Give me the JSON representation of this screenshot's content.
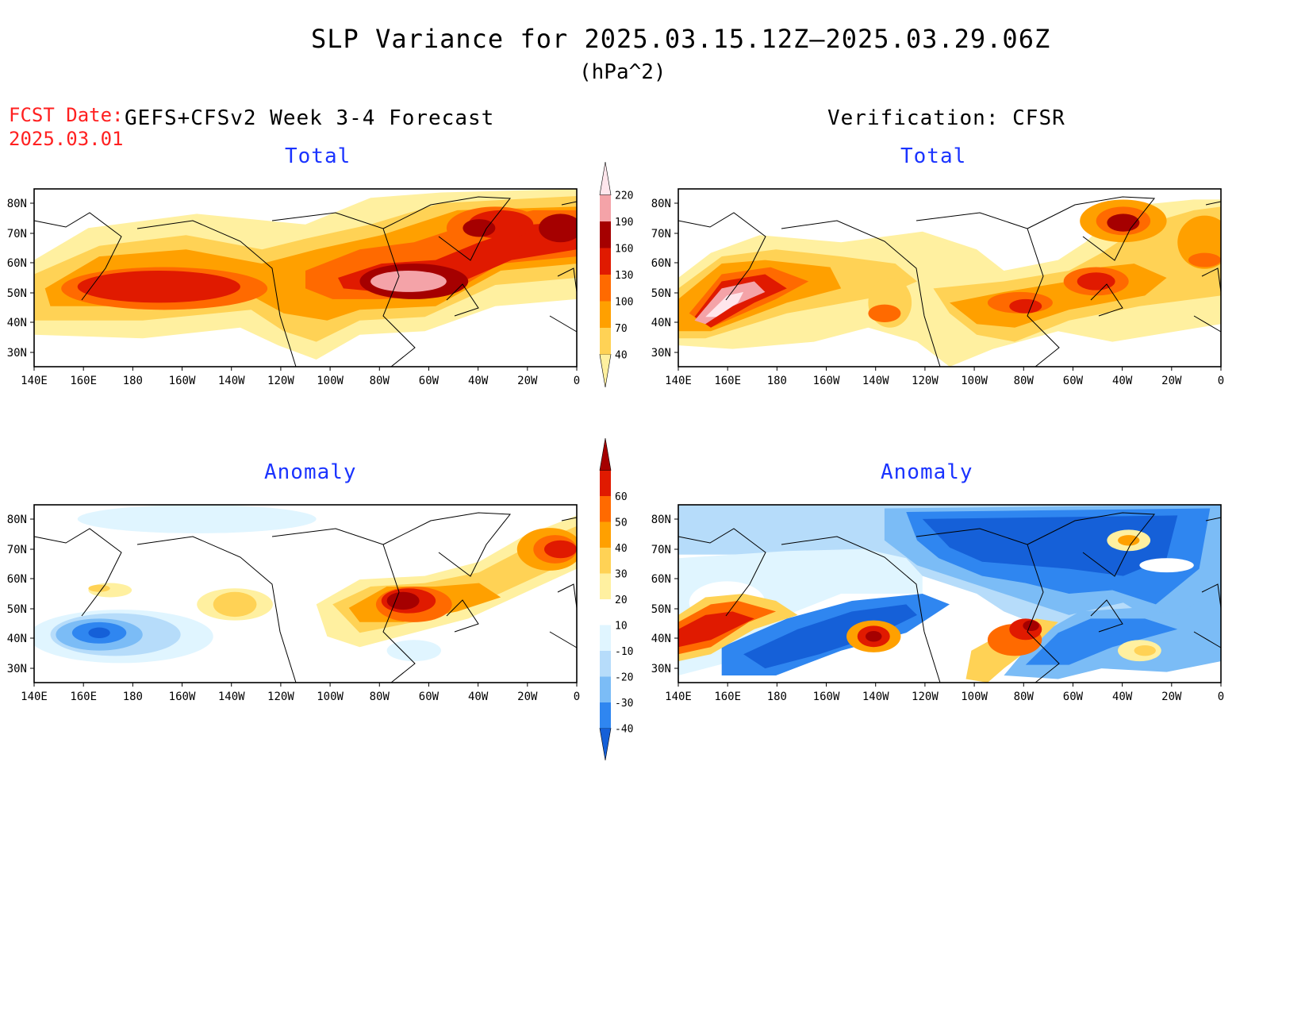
{
  "header": {
    "title": "SLP Variance for 2025.03.15.12Z—2025.03.29.06Z",
    "units": "(hPa^2)",
    "fcst_label": "FCST Date:",
    "fcst_date": "2025.03.01",
    "left_heading": "GEFS+CFSv2 Week 3-4 Forecast",
    "right_heading": "Verification: CFSR"
  },
  "panels": {
    "fcst_total": {
      "label": "Total"
    },
    "verif_total": {
      "label": "Total"
    },
    "fcst_anom": {
      "label": "Anomaly"
    },
    "verif_anom": {
      "label": "Anomaly"
    }
  },
  "axes": {
    "lat_labels": [
      "80N",
      "70N",
      "60N",
      "50N",
      "40N",
      "30N"
    ],
    "lon_labels": [
      "140E",
      "160E",
      "180",
      "160W",
      "140W",
      "120W",
      "100W",
      "80W",
      "60W",
      "40W",
      "20W",
      "0"
    ]
  },
  "colorbars": {
    "total": {
      "levels": [
        "40",
        "70",
        "100",
        "130",
        "160",
        "190",
        "220"
      ],
      "colors": [
        "#fff0a0",
        "#ffd255",
        "#ffa000",
        "#ff6a00",
        "#e01a00",
        "#a50000",
        "#f4a3a8",
        "#ffe6ec"
      ]
    },
    "anomaly": {
      "levels": [
        "-40",
        "-30",
        "-20",
        "-10",
        "10",
        "20",
        "30",
        "40",
        "50",
        "60"
      ],
      "colors": [
        "#1560d8",
        "#2f86f0",
        "#7bbcf6",
        "#b6dcfa",
        "#e0f5ff",
        "#ffffff",
        "#fff0a0",
        "#ffd255",
        "#ffa000",
        "#ff6a00",
        "#e01a00",
        "#a50000"
      ]
    }
  },
  "chart_data": [
    {
      "type": "heatmap",
      "panel": "GEFS+CFSv2 Week 3-4 Forecast",
      "title": "Total",
      "units": "hPa^2",
      "xlim": [
        "140E",
        "0"
      ],
      "ylim": [
        "25N",
        "85N"
      ],
      "features": [
        {
          "region": "North Pacific 160E-150W, 40-55N",
          "value_range": [
            130,
            160
          ]
        },
        {
          "region": "Hudson Bay / Labrador 80W-55W, 45-55N",
          "value_range": [
            190,
            220
          ]
        },
        {
          "region": "South Greenland 40W, 70N",
          "value_range": [
            160,
            190
          ]
        },
        {
          "region": "Northeast Atlantic 20W-0, 60-70N",
          "value_range": [
            160,
            190
          ]
        }
      ]
    },
    {
      "type": "heatmap",
      "panel": "Verification: CFSR",
      "title": "Total",
      "units": "hPa^2",
      "xlim": [
        "140E",
        "0"
      ],
      "ylim": [
        "25N",
        "85N"
      ],
      "features": [
        {
          "region": "Northwest Pacific 145E-165E, 40-50N",
          "value_range": [
            190,
            220
          ]
        },
        {
          "region": "Great Lakes 85W, 43N",
          "value_range": [
            160,
            190
          ]
        },
        {
          "region": "Labrador Sea 50W, 52N",
          "value_range": [
            160,
            190
          ]
        },
        {
          "region": "Greenland 40W, 72N",
          "value_range": [
            160,
            190
          ]
        }
      ]
    },
    {
      "type": "heatmap",
      "panel": "GEFS+CFSv2 Week 3-4 Forecast",
      "title": "Anomaly",
      "units": "hPa^2",
      "xlim": [
        "140E",
        "0"
      ],
      "ylim": [
        "25N",
        "85N"
      ],
      "features": [
        {
          "region": "Hudson Bay / Quebec 75W, 50N",
          "value_range": [
            50,
            60
          ]
        },
        {
          "region": "Northeast Atlantic 5W, 70N",
          "value_range": [
            50,
            60
          ]
        },
        {
          "region": "North Pacific 170E, 42N",
          "value_range": [
            -40,
            -30
          ]
        }
      ]
    },
    {
      "type": "heatmap",
      "panel": "Verification: CFSR",
      "title": "Anomaly",
      "units": "hPa^2",
      "xlim": [
        "140E",
        "0"
      ],
      "ylim": [
        "25N",
        "85N"
      ],
      "features": [
        {
          "region": "Northwest Pacific 145E-165E, 40-50N",
          "value_range": [
            50,
            60
          ]
        },
        {
          "region": "Gulf of Alaska 135W, 42N",
          "value_range": [
            50,
            60
          ]
        },
        {
          "region": "Great Lakes 85W, 43N",
          "value_range": [
            50,
            60
          ]
        },
        {
          "region": "Arctic Canada / Greenland",
          "value_range": [
            -40,
            -30
          ]
        }
      ]
    }
  ]
}
